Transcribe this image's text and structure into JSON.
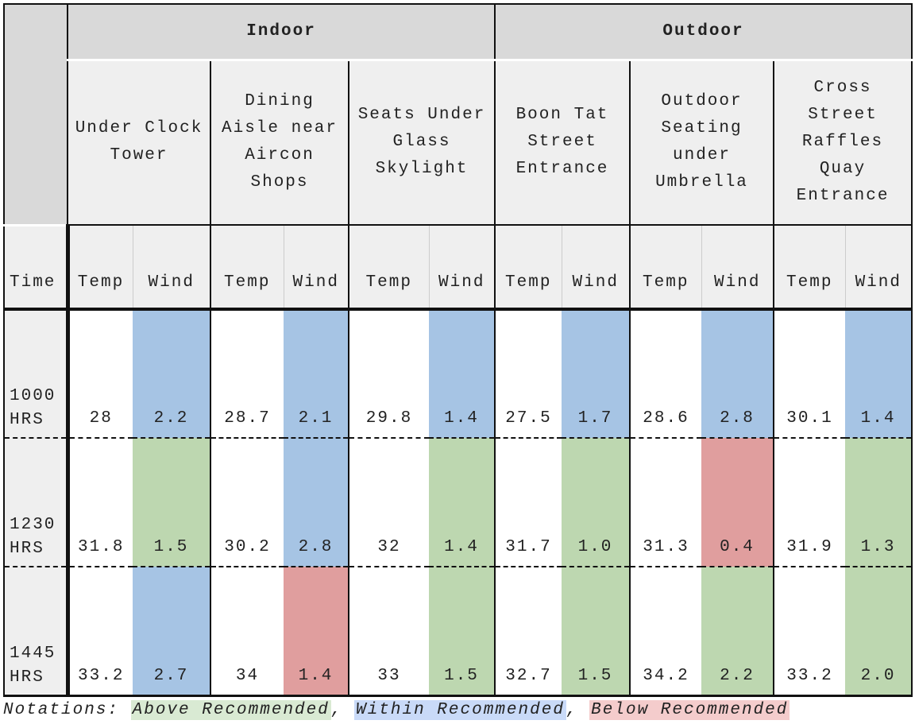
{
  "header": {
    "time_label": "Time",
    "groups": [
      "Indoor",
      "Outdoor"
    ],
    "locations": [
      "Under Clock Tower",
      "Dining Aisle near Aircon Shops",
      "Seats Under Glass Skylight",
      "Boon Tat Street Entrance",
      "Outdoor Seating under Umbrella",
      "Cross Street Raffles Quay Entrance"
    ],
    "temp_label": "Temp",
    "wind_label": "Wind"
  },
  "colors": {
    "above": "#bdd7b0",
    "within": "#a6c4e4",
    "below": "#e09e9e"
  },
  "rows": [
    {
      "time": "1000 HRS",
      "cells": [
        [
          "28",
          "2.2",
          "within"
        ],
        [
          "28.7",
          "2.1",
          "within"
        ],
        [
          "29.8",
          "1.4",
          "within"
        ],
        [
          "27.5",
          "1.7",
          "within"
        ],
        [
          "28.6",
          "2.8",
          "within"
        ],
        [
          "30.1",
          "1.4",
          "within"
        ]
      ]
    },
    {
      "time": "1230 HRS",
      "cells": [
        [
          "31.8",
          "1.5",
          "above"
        ],
        [
          "30.2",
          "2.8",
          "within"
        ],
        [
          "32",
          "1.4",
          "above"
        ],
        [
          "31.7",
          "1.0",
          "above"
        ],
        [
          "31.3",
          "0.4",
          "below"
        ],
        [
          "31.9",
          "1.3",
          "above"
        ]
      ]
    },
    {
      "time": "1445 HRS",
      "cells": [
        [
          "33.2",
          "2.7",
          "within"
        ],
        [
          "34",
          "1.4",
          "below"
        ],
        [
          "33",
          "1.5",
          "above"
        ],
        [
          "32.7",
          "1.5",
          "above"
        ],
        [
          "34.2",
          "2.2",
          "above"
        ],
        [
          "33.2",
          "2.0",
          "above"
        ]
      ]
    }
  ],
  "legend": {
    "prefix": "Notations: ",
    "above": "Above Recommended",
    "within": "Within Recommended",
    "below": "Below Recommended",
    "sep": ", "
  }
}
